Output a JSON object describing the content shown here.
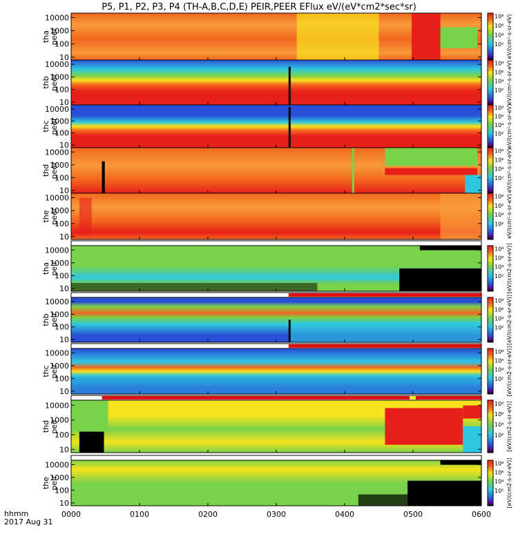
{
  "chart_data": {
    "type": "heatmap",
    "title": "P5, P1, P2, P3, P4 (TH-A,B,C,D,E) PEIR,PEER EFlux eV/(eV*cm2*sec*sr)",
    "x_time_label": "hhmm",
    "date_label": "2017 Aug 31",
    "x_ticks": [
      "0000",
      "0100",
      "0200",
      "0300",
      "0400",
      "0500",
      "0600"
    ],
    "y_scale": "log",
    "colorbar_scale": "log",
    "colorbar_ticks": [
      "10²",
      "10⁴",
      "10⁶",
      "10⁸"
    ],
    "colorbar_unit_electron": "eV/(cm²-s-sr-eV)",
    "colorbar_unit_ion": "[eV/(cm2-s-sr-eV)]",
    "panels": [
      {
        "id": "tha-peer",
        "probe": "tha",
        "species": "peer",
        "y_ticks": [
          "10",
          "100",
          "1000",
          "10000"
        ],
        "mode_bar": false
      },
      {
        "id": "thb-peer",
        "probe": "thb",
        "species": "peer",
        "y_ticks": [
          "10",
          "100",
          "1000",
          "10000"
        ],
        "mode_bar": false
      },
      {
        "id": "thc-peer",
        "probe": "thc",
        "species": "peer",
        "y_ticks": [
          "10",
          "100",
          "1000",
          "10000"
        ],
        "mode_bar": false
      },
      {
        "id": "thd-peer",
        "probe": "thd",
        "species": "peer",
        "y_ticks": [
          "10",
          "100",
          "1000",
          "10000"
        ],
        "mode_bar": false
      },
      {
        "id": "the-peer",
        "probe": "the",
        "species": "peer",
        "y_ticks": [
          "10",
          "100",
          "1000",
          "10000"
        ],
        "mode_bar": false
      },
      {
        "id": "tha-peir",
        "probe": "tha",
        "species": "peir",
        "y_ticks": [
          "10",
          "100",
          "1000",
          "10000"
        ],
        "mode_bar": true
      },
      {
        "id": "thb-peir",
        "probe": "thb",
        "species": "peir",
        "y_ticks": [
          "10",
          "100",
          "1000",
          "10000"
        ],
        "mode_bar": true
      },
      {
        "id": "thc-peir",
        "probe": "thc",
        "species": "peir",
        "y_ticks": [
          "10",
          "100",
          "1000",
          "10000"
        ],
        "mode_bar": true
      },
      {
        "id": "thd-peir",
        "probe": "thd",
        "species": "peir",
        "y_ticks": [
          "10",
          "100",
          "1000",
          "10000"
        ],
        "mode_bar": true
      },
      {
        "id": "the-peir",
        "probe": "the",
        "species": "peir",
        "y_ticks": [
          "10",
          "100",
          "1000",
          "10000"
        ],
        "mode_bar": true
      }
    ],
    "colors": {
      "black": "#000000",
      "red": "#e8201a",
      "orange": "#f2671e",
      "orange_light": "#f89a3a",
      "yellow": "#f6e21d",
      "green": "#7ad14a",
      "cyan": "#2ec7e0",
      "blue": "#2a4fd6",
      "mode_bar_red": "#e01010",
      "mode_bar_white": "#ffffff",
      "mode_bar_yellow": "#f4ee2a"
    }
  }
}
